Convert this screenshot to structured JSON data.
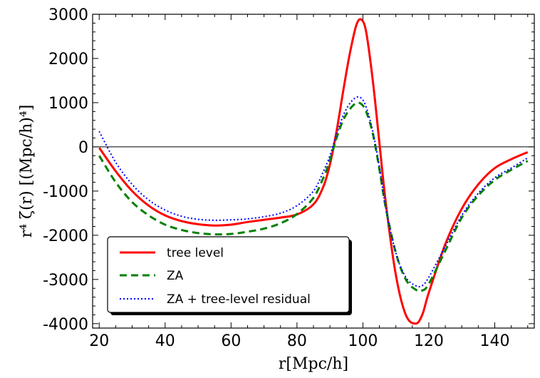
{
  "chart_data": {
    "type": "line",
    "title": "",
    "xlabel": "r[Mpc/h]",
    "ylabel": "r⁴ ζ(r) [(Mpc/h)⁴]",
    "xlim": [
      18,
      152
    ],
    "ylim": [
      -4100,
      3000
    ],
    "xticks": [
      20,
      40,
      60,
      80,
      100,
      120,
      140
    ],
    "yticks": [
      -4000,
      -3000,
      -2000,
      -1000,
      0,
      1000,
      2000,
      3000
    ],
    "xtick_labels": [
      "20",
      "40",
      "60",
      "80",
      "100",
      "120",
      "140"
    ],
    "ytick_labels": [
      "-4000",
      "-3000",
      "-2000",
      "-1000",
      "0",
      "1000",
      "2000",
      "3000"
    ],
    "hline": 0,
    "legend_position": "lower-left",
    "series": [
      {
        "name": "tree level",
        "color": "#ff0000",
        "style": "solid",
        "x": [
          20,
          25,
          30,
          35,
          40,
          45,
          50,
          55,
          60,
          65,
          70,
          75,
          80,
          85,
          88,
          90,
          92,
          94,
          96,
          98,
          99.5,
          101,
          103,
          105,
          107,
          110,
          113,
          116,
          118,
          120,
          125,
          130,
          135,
          140,
          145,
          150
        ],
        "y": [
          -20,
          -550,
          -1000,
          -1330,
          -1550,
          -1680,
          -1750,
          -1780,
          -1760,
          -1700,
          -1650,
          -1600,
          -1530,
          -1300,
          -900,
          -400,
          350,
          1250,
          2100,
          2750,
          2880,
          2600,
          1500,
          100,
          -1300,
          -2900,
          -3800,
          -4000,
          -3800,
          -3300,
          -2200,
          -1400,
          -850,
          -480,
          -280,
          -120
        ]
      },
      {
        "name": "ZA",
        "color": "#008000",
        "style": "dashed",
        "x": [
          20,
          25,
          30,
          35,
          40,
          45,
          50,
          55,
          60,
          65,
          70,
          75,
          80,
          85,
          88,
          90,
          92,
          94,
          96,
          98,
          99.5,
          101,
          103,
          105,
          107,
          110,
          113,
          116,
          118,
          120,
          125,
          130,
          135,
          140,
          145,
          150
        ],
        "y": [
          -200,
          -800,
          -1250,
          -1550,
          -1760,
          -1880,
          -1950,
          -1980,
          -1970,
          -1920,
          -1850,
          -1730,
          -1520,
          -1150,
          -700,
          -300,
          200,
          600,
          850,
          990,
          970,
          800,
          300,
          -500,
          -1400,
          -2400,
          -3000,
          -3230,
          -3250,
          -3100,
          -2350,
          -1600,
          -1100,
          -750,
          -520,
          -320
        ]
      },
      {
        "name": "ZA + tree-level residual",
        "color": "#0000ff",
        "style": "dotted",
        "x": [
          20,
          25,
          30,
          35,
          40,
          45,
          50,
          55,
          60,
          65,
          70,
          75,
          80,
          85,
          88,
          90,
          92,
          94,
          96,
          98,
          99.5,
          101,
          103,
          105,
          107,
          110,
          113,
          116,
          118,
          120,
          125,
          130,
          135,
          140,
          145,
          150
        ],
        "y": [
          350,
          -350,
          -850,
          -1200,
          -1430,
          -1570,
          -1640,
          -1660,
          -1650,
          -1630,
          -1580,
          -1500,
          -1330,
          -1000,
          -560,
          -200,
          280,
          700,
          980,
          1120,
          1100,
          900,
          350,
          -450,
          -1400,
          -2400,
          -2950,
          -3140,
          -3140,
          -2950,
          -2250,
          -1550,
          -1050,
          -700,
          -480,
          -250
        ]
      }
    ]
  }
}
